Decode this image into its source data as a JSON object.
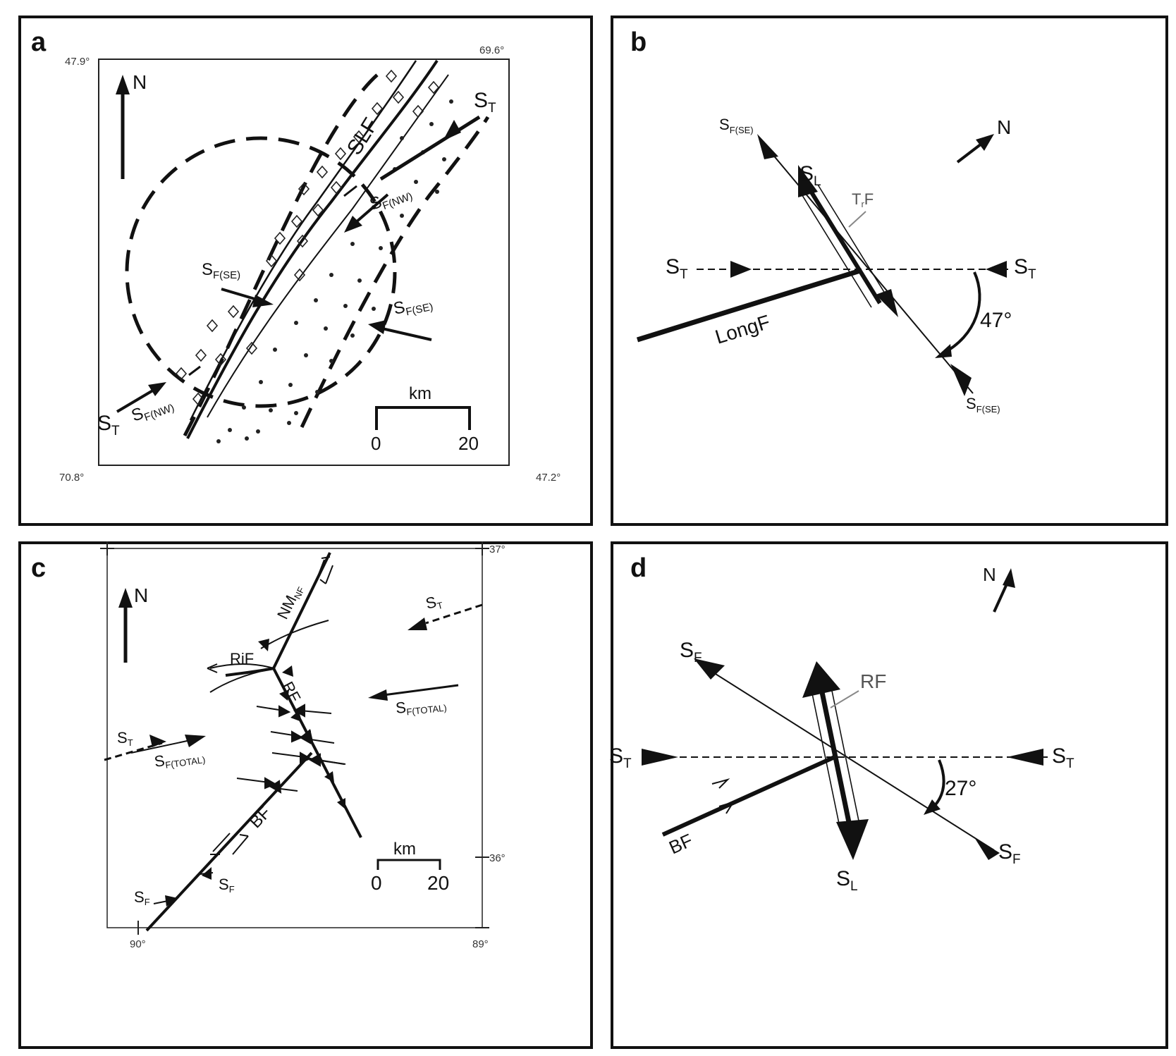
{
  "panels": {
    "a": {
      "label": "a",
      "corners": {
        "top_left": "47.9°",
        "top_right": "69.6°",
        "bottom_left": "70.8°",
        "bottom_right": "47.2°"
      },
      "north": "N",
      "fault": "SLF",
      "st_base": "S",
      "st_sub": "T",
      "sf_base": "S",
      "sf_se_sub": "F(SE)",
      "sf_nw_sub": "F(NW)",
      "scale_unit": "km",
      "scale_min": "0",
      "scale_max": "20"
    },
    "b": {
      "label": "b",
      "north": "N",
      "sf_base": "S",
      "sf_se_sub": "F(SE)",
      "sl_base": "S",
      "sl_sub": "L",
      "st_base": "S",
      "st_sub": "T",
      "trf_base": "T",
      "trf_sub": "r",
      "trf_tail": "F",
      "long_fault": "LongF",
      "angle": "47°"
    },
    "c": {
      "label": "c",
      "corners": {
        "top_right": "37°",
        "mid_right": "36°",
        "bottom_left": "90°",
        "bottom_right": "89°"
      },
      "north": "N",
      "nm_base": "NM",
      "nm_sub": "NF",
      "rif": "RiF",
      "rf": "RF",
      "bf": "BF",
      "st_base": "S",
      "st_sub": "T",
      "sf_base": "S",
      "sf_total_sub": "F(TOTAL)",
      "sf_sub": "F",
      "scale_unit": "km",
      "scale_min": "0",
      "scale_max": "20"
    },
    "d": {
      "label": "d",
      "north": "N",
      "sf_base": "S",
      "sf_sub": "F",
      "st_base": "S",
      "st_sub": "T",
      "sl_base": "S",
      "sl_sub": "L",
      "rf": "RF",
      "bf": "BF",
      "angle": "27°"
    }
  }
}
